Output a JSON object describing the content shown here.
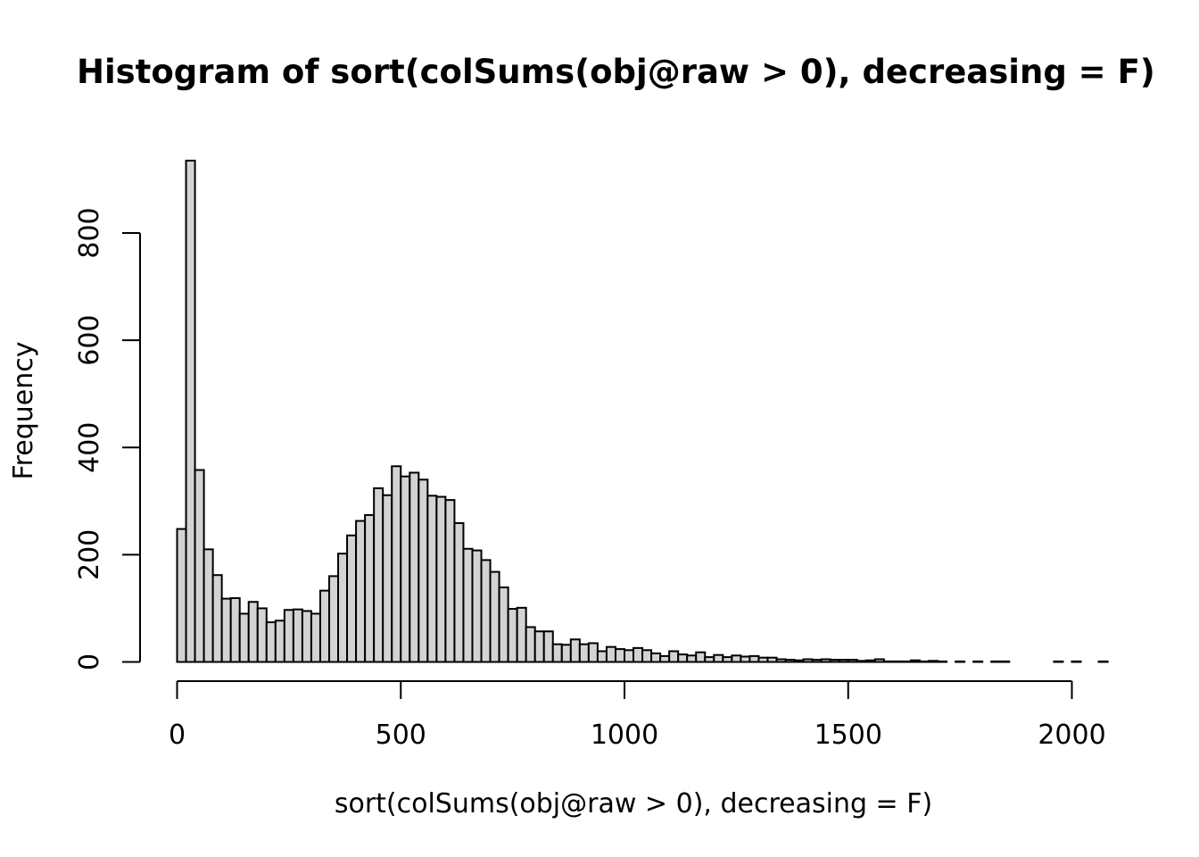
{
  "chart_data": {
    "type": "bar",
    "title": "Histogram of sort(colSums(obj@raw > 0), decreasing = F)",
    "xlabel": "sort(colSums(obj@raw > 0), decreasing = F)",
    "ylabel": "Frequency",
    "bin_width": 20,
    "x_start": 0,
    "xlim": [
      0,
      2040
    ],
    "ylim": [
      0,
      800
    ],
    "x_ticks": [
      0,
      500,
      1000,
      1500,
      2000
    ],
    "y_ticks": [
      0,
      200,
      400,
      600,
      800
    ],
    "grid": false,
    "legend": "none",
    "colors": {
      "bar_fill": "#d3d3d3",
      "bar_stroke": "#000000"
    },
    "values": [
      248,
      935,
      358,
      210,
      162,
      118,
      119,
      90,
      112,
      100,
      74,
      77,
      97,
      98,
      95,
      90,
      133,
      160,
      202,
      236,
      263,
      274,
      324,
      311,
      365,
      346,
      353,
      340,
      310,
      308,
      302,
      259,
      211,
      208,
      190,
      168,
      139,
      99,
      101,
      65,
      57,
      57,
      33,
      32,
      42,
      33,
      35,
      20,
      28,
      24,
      22,
      26,
      22,
      16,
      11,
      20,
      14,
      12,
      18,
      9,
      13,
      9,
      12,
      10,
      11,
      8,
      8,
      5,
      4,
      3,
      5,
      4,
      5,
      4,
      4,
      4,
      2,
      3,
      5,
      1,
      1,
      1,
      3,
      1,
      2,
      1,
      0,
      1,
      0,
      1,
      0,
      1,
      1,
      0,
      0,
      0,
      0,
      0,
      1,
      0,
      1,
      0,
      0,
      1
    ]
  }
}
